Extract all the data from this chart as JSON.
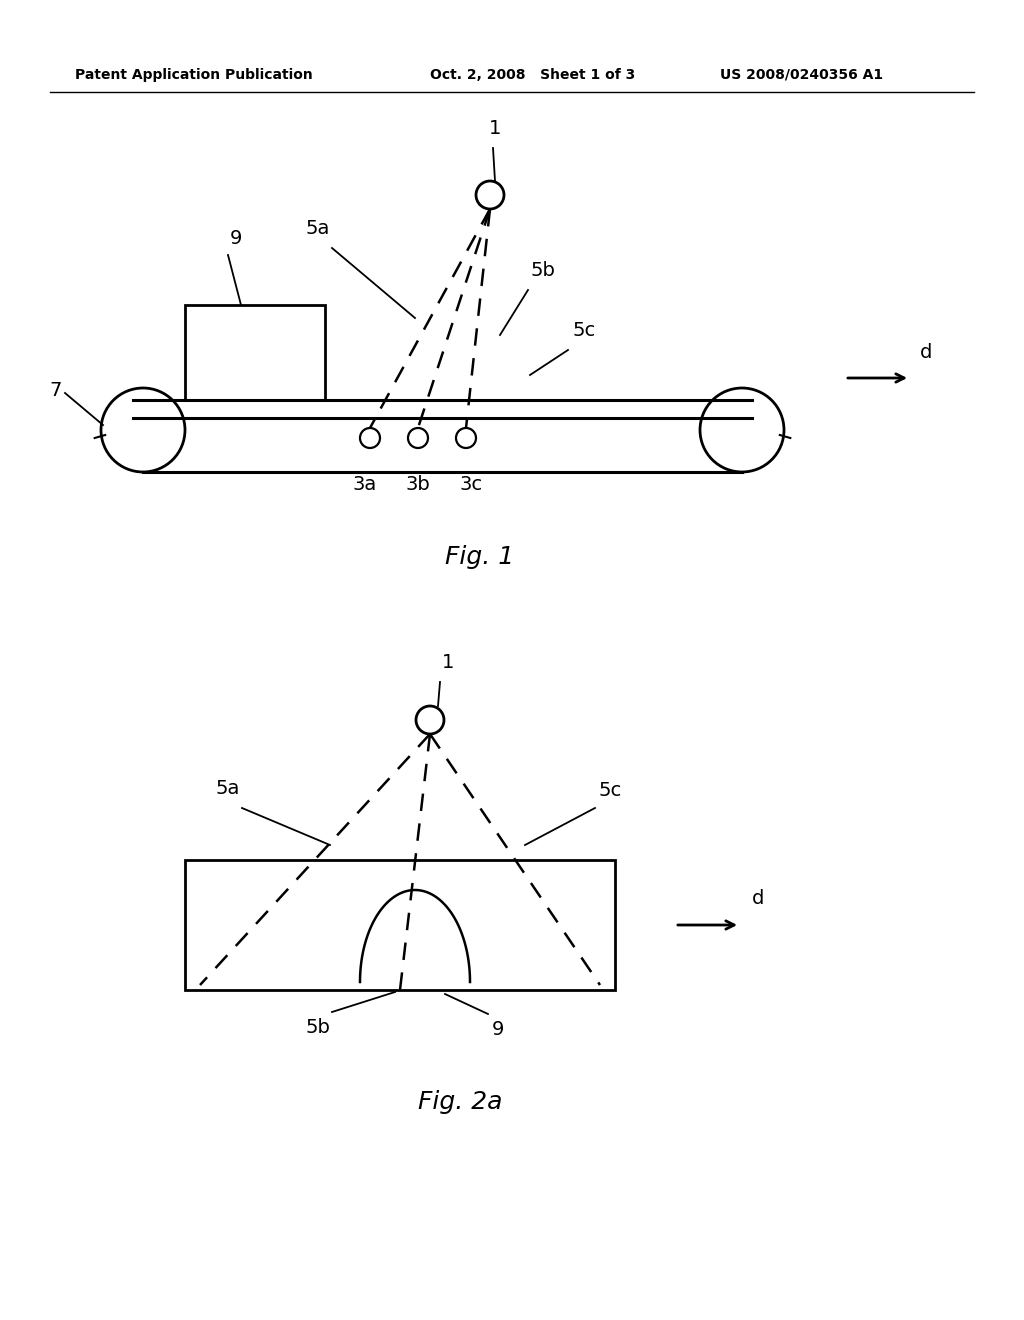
{
  "bg_color": "#ffffff",
  "header_left": "Patent Application Publication",
  "header_mid": "Oct. 2, 2008   Sheet 1 of 3",
  "header_right": "US 2008/0240356 A1",
  "fig1_caption": "Fig. 1",
  "fig2a_caption": "Fig. 2a"
}
